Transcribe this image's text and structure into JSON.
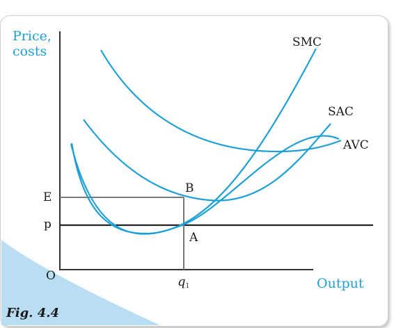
{
  "figure": {
    "caption": "Fig. 4.4",
    "y_axis_label_line1": "Price,",
    "y_axis_label_line2": "costs",
    "x_axis_label": "Output",
    "origin_label": "O",
    "price_label": "p",
    "cost_label": "E",
    "point_a_label": "A",
    "point_b_label": "B",
    "quantity_label": "q",
    "quantity_subscript": "1",
    "curves": [
      {
        "name": "SMC",
        "color": "#1e9fd6"
      },
      {
        "name": "SAC",
        "color": "#1e9fd6"
      },
      {
        "name": "AVC",
        "color": "#1e9fd6"
      }
    ],
    "colors": {
      "curve": "#1e9fd6",
      "axis_label": "#1e9fd6",
      "axes": "#333333",
      "guides": "#777777",
      "swoosh": "#b9ddf3"
    }
  }
}
